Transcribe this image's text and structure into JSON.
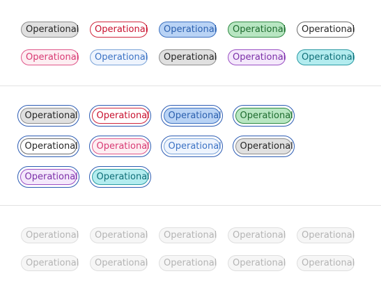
{
  "label": "Operational",
  "colors": {
    "focus_ring": "#2b5bb3",
    "divider": "#e2e2e2"
  },
  "sections": [
    {
      "name": "default",
      "badges": [
        {
          "variant": "neutral",
          "label": "Operational"
        },
        {
          "variant": "red",
          "label": "Operational"
        },
        {
          "variant": "blue",
          "label": "Operational"
        },
        {
          "variant": "green",
          "label": "Operational"
        },
        {
          "variant": "outline",
          "label": "Operational"
        },
        {
          "variant": "pink",
          "label": "Operational"
        },
        {
          "variant": "light-blue",
          "label": "Operational"
        },
        {
          "variant": "neutral",
          "label": "Operational"
        },
        {
          "variant": "purple",
          "label": "Operational"
        },
        {
          "variant": "teal",
          "label": "Operational"
        }
      ]
    },
    {
      "name": "focused",
      "badges": [
        {
          "variant": "neutral",
          "label": "Operational"
        },
        {
          "variant": "red",
          "label": "Operational"
        },
        {
          "variant": "blue",
          "label": "Operational"
        },
        {
          "variant": "green",
          "label": "Operational"
        },
        {
          "variant": "outline",
          "label": "Operational"
        },
        {
          "variant": "pink",
          "label": "Operational"
        },
        {
          "variant": "light-blue",
          "label": "Operational"
        },
        {
          "variant": "neutral",
          "label": "Operational"
        },
        {
          "variant": "purple",
          "label": "Operational"
        },
        {
          "variant": "teal",
          "label": "Operational"
        }
      ]
    },
    {
      "name": "disabled",
      "badges": [
        {
          "variant": "disabled",
          "label": "Operational"
        },
        {
          "variant": "disabled",
          "label": "Operational"
        },
        {
          "variant": "disabled",
          "label": "Operational"
        },
        {
          "variant": "disabled",
          "label": "Operational"
        },
        {
          "variant": "disabled",
          "label": "Operational"
        },
        {
          "variant": "disabled",
          "label": "Operational"
        },
        {
          "variant": "disabled",
          "label": "Operational"
        },
        {
          "variant": "disabled",
          "label": "Operational"
        },
        {
          "variant": "disabled",
          "label": "Operational"
        },
        {
          "variant": "disabled",
          "label": "Operational"
        }
      ]
    }
  ]
}
